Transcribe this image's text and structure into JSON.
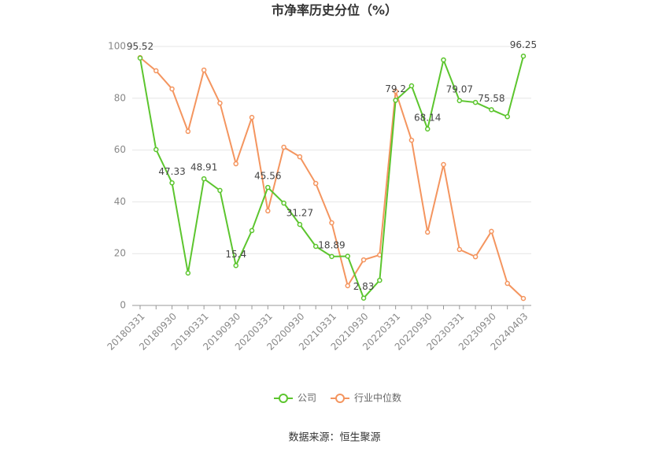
{
  "chart_data": {
    "type": "line",
    "title": "市净率历史分位（%）",
    "categories": [
      "20180331",
      null,
      "20180930",
      null,
      "20190331",
      null,
      "20190930",
      null,
      "20200331",
      null,
      "20200930",
      null,
      "20210331",
      null,
      "20210930",
      null,
      "20220331",
      null,
      "20220930",
      null,
      "20230331",
      null,
      "20230930",
      null,
      "20240403"
    ],
    "series": [
      {
        "name": "公司",
        "color": "#5cc52e",
        "label_step": 2,
        "values": [
          95.52,
          60.2,
          47.33,
          12.5,
          48.91,
          44.4,
          15.4,
          28.9,
          45.56,
          39.5,
          31.27,
          22.8,
          18.89,
          19.0,
          2.83,
          9.7,
          79.2,
          84.8,
          68.14,
          94.8,
          79.07,
          78.4,
          75.58,
          72.9,
          96.25
        ]
      },
      {
        "name": "行业中位数",
        "color": "#f4955f",
        "values": [
          95.7,
          90.6,
          83.6,
          67.2,
          90.9,
          78.1,
          54.7,
          72.6,
          36.5,
          61.1,
          57.4,
          47.1,
          31.9,
          7.6,
          17.6,
          19.5,
          82.7,
          63.8,
          28.3,
          54.4,
          21.6,
          18.8,
          28.6,
          8.5,
          2.7
        ]
      }
    ],
    "ylim": [
      0,
      100
    ],
    "yticks": [
      0,
      20,
      40,
      60,
      80,
      100
    ],
    "grid": true,
    "legend": "bottom",
    "source": "数据来源：恒生聚源"
  }
}
